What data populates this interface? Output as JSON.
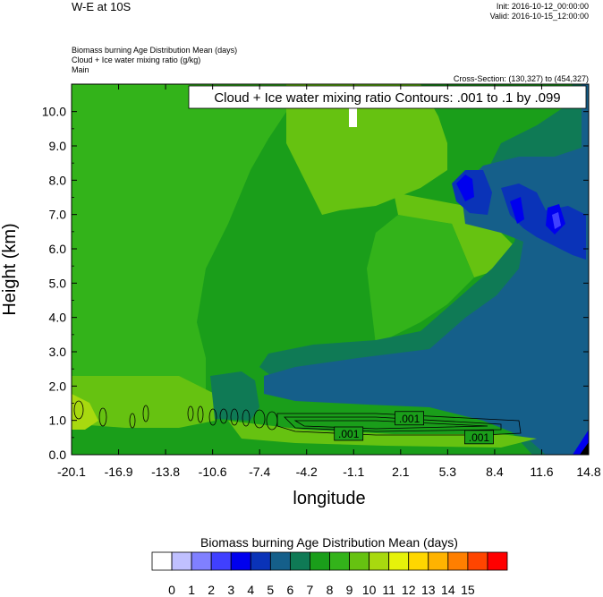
{
  "header": {
    "title": "W-E at 10S",
    "init": "Init: 2016-10-12_00:00:00",
    "valid": "Valid: 2016-10-15_12:00:00",
    "field_line1": "Biomass burning Age Distribution Mean    (days)",
    "field_line2": "Cloud + Ice water mixing ratio    (g/kg)",
    "field_line3": "Main",
    "cross_section": "Cross-Section: (130,327) to (454,327)"
  },
  "chart_data": {
    "type": "heatmap",
    "title": "",
    "contour_label": "Cloud + Ice water mixing ratio Contours: .001 to .1 by .099",
    "xlabel": "longitude",
    "ylabel": "Height (km)",
    "xlim": [
      -20.1,
      14.8
    ],
    "ylim": [
      0.0,
      10.8
    ],
    "x_ticks": [
      "-20.1",
      "-16.9",
      "-13.8",
      "-10.6",
      "-7.4",
      "-4.2",
      "-1.1",
      "2.1",
      "5.3",
      "8.4",
      "11.6",
      "14.8"
    ],
    "y_ticks": [
      "0.0",
      "1.0",
      "2.0",
      "3.0",
      "4.0",
      "5.0",
      "6.0",
      "7.0",
      "8.0",
      "9.0",
      "10.0"
    ],
    "contour_labels": [
      {
        "text": ".001",
        "x": -1.4,
        "y": 0.6
      },
      {
        "text": ".001",
        "x": 2.7,
        "y": 1.05
      },
      {
        "text": ".001",
        "x": 7.4,
        "y": 0.5
      }
    ],
    "colorbar": {
      "title": "Biomass burning Age Distribution Mean  (days)",
      "labels": [
        "0",
        "1",
        "2",
        "3",
        "4",
        "5",
        "6",
        "7",
        "8",
        "9",
        "10",
        "11",
        "12",
        "13",
        "14",
        "15"
      ],
      "colors": [
        "#ffffff",
        "#c0c0ff",
        "#8080ff",
        "#4040ff",
        "#0000ee",
        "#0a33b8",
        "#155f8a",
        "#0f7a55",
        "#1a9e1a",
        "#33b31a",
        "#66c211",
        "#a8d90f",
        "#e6f20a",
        "#ffd700",
        "#ffb300",
        "#ff7f00",
        "#ff4500",
        "#ff0000"
      ]
    },
    "grid": false
  }
}
